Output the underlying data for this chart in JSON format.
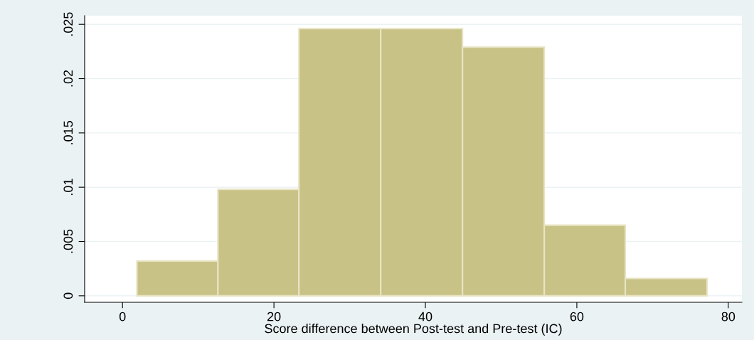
{
  "chart_data": {
    "type": "histogram",
    "xlabel": "Score difference between Post-test and Pre-test (IC)",
    "bins": [
      1.9,
      12.6,
      23.3,
      34.1,
      44.9,
      55.7,
      66.4,
      77.2
    ],
    "values": [
      0.0032,
      0.0098,
      0.0246,
      0.0246,
      0.0229,
      0.0065,
      0.0016
    ],
    "color": "#c9c287",
    "xlim": [
      -5,
      81.8
    ],
    "xticks": [
      0,
      20,
      40,
      60,
      80
    ],
    "ylim": [
      -0.0006,
      0.0258
    ],
    "yticks": [
      {
        "value": 0,
        "label": "0"
      },
      {
        "value": 0.005,
        "label": ".005"
      },
      {
        "value": 0.01,
        "label": ".01"
      },
      {
        "value": 0.015,
        "label": ".015"
      },
      {
        "value": 0.02,
        "label": ".02"
      },
      {
        "value": 0.025,
        "label": ".025"
      }
    ],
    "grid": "y"
  }
}
